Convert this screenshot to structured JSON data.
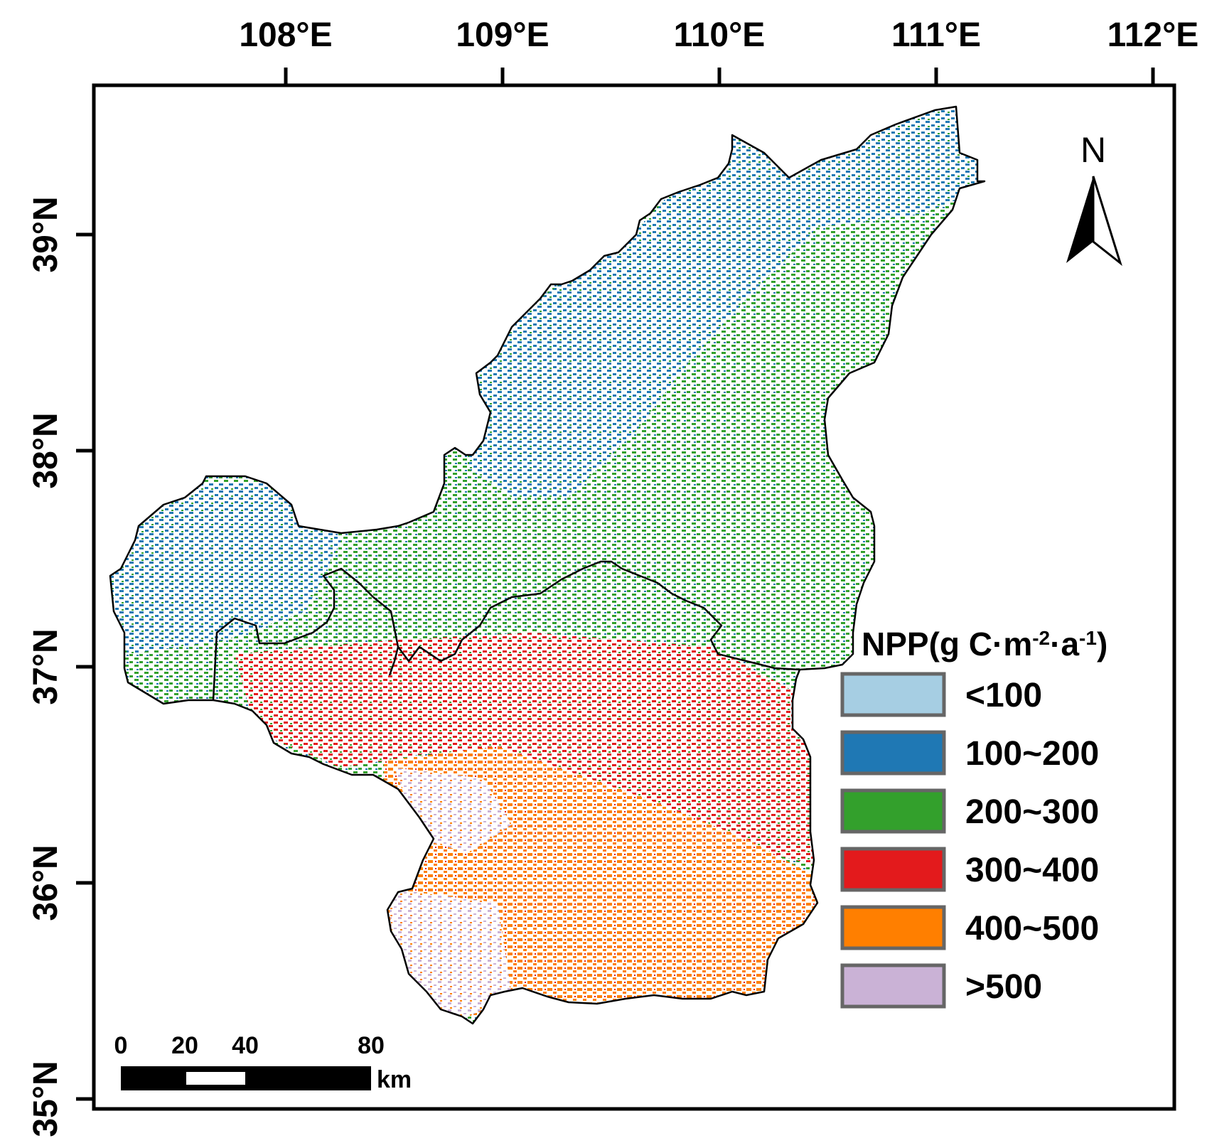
{
  "map": {
    "lon_ticks": [
      "108°E",
      "109°E",
      "110°E",
      "111°E",
      "112°E"
    ],
    "lat_ticks": [
      "39°N",
      "38°N",
      "37°N",
      "36°N",
      "35°N"
    ],
    "north_label": "N",
    "legend": {
      "title_main": "NPP(g C·m",
      "title_sup1": "-2",
      "title_mid": "·a",
      "title_sup2": "-1",
      "title_end": ")",
      "classes": [
        {
          "label": "<100",
          "color": "#a6cee3"
        },
        {
          "label": "100~200",
          "color": "#1f78b4"
        },
        {
          "label": "200~300",
          "color": "#33a02c"
        },
        {
          "label": "300~400",
          "color": "#e31a1c"
        },
        {
          "label": "400~500",
          "color": "#ff7f00"
        },
        {
          "label": ">500",
          "color": "#cab2d6"
        }
      ]
    },
    "scale_bar": {
      "labels": [
        "0",
        "20",
        "40",
        "80"
      ],
      "unit": "km"
    }
  }
}
